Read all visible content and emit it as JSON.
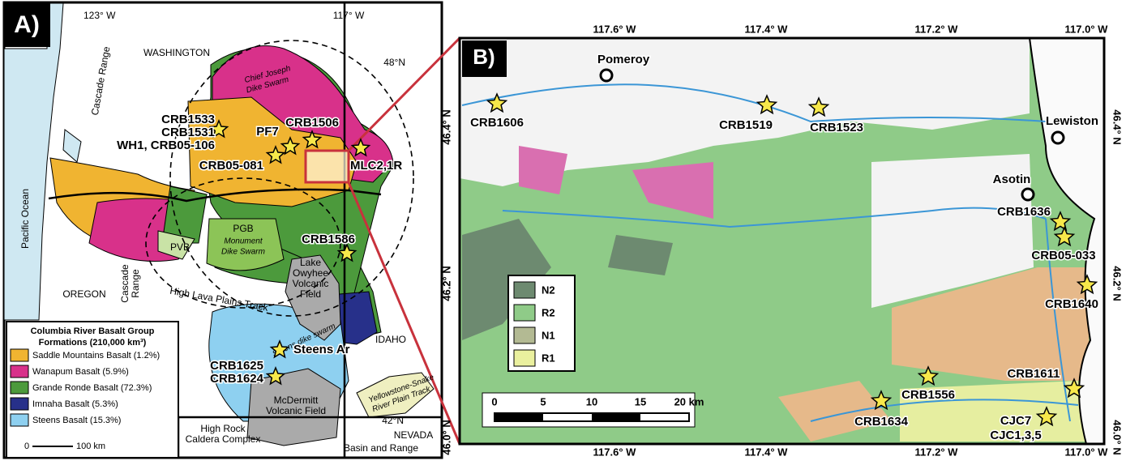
{
  "panel_a": {
    "label": "A)",
    "graticule": [
      "123° W",
      "117° W",
      "48°N",
      "42°N"
    ],
    "places": [
      [
        "WASHINGTON"
      ],
      [
        "Pacific Ocean"
      ],
      [
        "Cascade Range"
      ],
      [
        "Cascade",
        "Range"
      ],
      [
        "OREGON"
      ],
      [
        "IDAHO"
      ],
      [
        "NEVADA"
      ],
      [
        "Chief Joseph",
        "Dike Swarm"
      ],
      [
        "PVB"
      ],
      [
        "PGB"
      ],
      [
        "Monument",
        "Dike Swarm"
      ],
      [
        "Lake",
        "Owyhee",
        "Volcanic",
        "Field"
      ],
      [
        "High Lava Plains Track"
      ],
      [
        "Steens dike swarm"
      ],
      [
        "McDermitt",
        "Volcanic Field"
      ],
      [
        "High Rock",
        "Caldera Complex"
      ],
      [
        "Basin and Range"
      ],
      [
        "Yellowstone-Snake",
        "River Plain Track"
      ]
    ],
    "samples": [
      [
        "CRB1533",
        "CRB1531",
        "WH1, CRB05-106"
      ],
      [
        "PF7"
      ],
      [
        "CRB1506"
      ],
      [
        "CRB05-081"
      ],
      [
        "MLC2,1R"
      ],
      [
        "CRB1586"
      ],
      [
        "Steens Ar"
      ],
      [
        "CRB1625",
        "CRB1624"
      ]
    ],
    "legend": {
      "title": "Columbia River Basalt Group",
      "subtitle": "Formations (210,000 km³)",
      "items": [
        {
          "label": "Saddle Mountains Basalt (1.2%)",
          "color": "#f0b431"
        },
        {
          "label": "Wanapum Basalt (5.9%)",
          "color": "#d8318a"
        },
        {
          "label": "Grande Ronde Basalt (72.3%)",
          "color": "#4c9a3c"
        },
        {
          "label": "Imnaha Basalt (5.3%)",
          "color": "#27308a"
        },
        {
          "label": "Steens Basalt (15.3%)",
          "color": "#8ed0f0"
        }
      ]
    },
    "scale": [
      "0",
      "100 km"
    ]
  },
  "panel_b": {
    "label": "B)",
    "lon_ticks": [
      "117.6° W",
      "117.4° W",
      "117.2° W",
      "117.0° W"
    ],
    "lat_ticks": [
      "46.4° N",
      "46.2° N",
      "46.0° N"
    ],
    "cities": [
      "Pomeroy",
      "Lewiston",
      "Asotin"
    ],
    "samples": [
      [
        "CRB1606"
      ],
      [
        "CRB1519"
      ],
      [
        "CRB1523"
      ],
      [
        "CRB1636"
      ],
      [
        "CRB05-033"
      ],
      [
        "CRB1640"
      ],
      [
        "CRB1611"
      ],
      [
        "CJC7",
        "CJC1,3,5"
      ],
      [
        "CRB1556"
      ],
      [
        "CRB1634"
      ]
    ],
    "legend": [
      {
        "label": "N2",
        "color": "#6d8a70"
      },
      {
        "label": "R2",
        "color": "#8fcb88"
      },
      {
        "label": "N1",
        "color": "#b3ba93"
      },
      {
        "label": "R1",
        "color": "#eaf09e"
      }
    ],
    "scale": [
      "0",
      "5",
      "10",
      "15",
      "20 km"
    ]
  }
}
